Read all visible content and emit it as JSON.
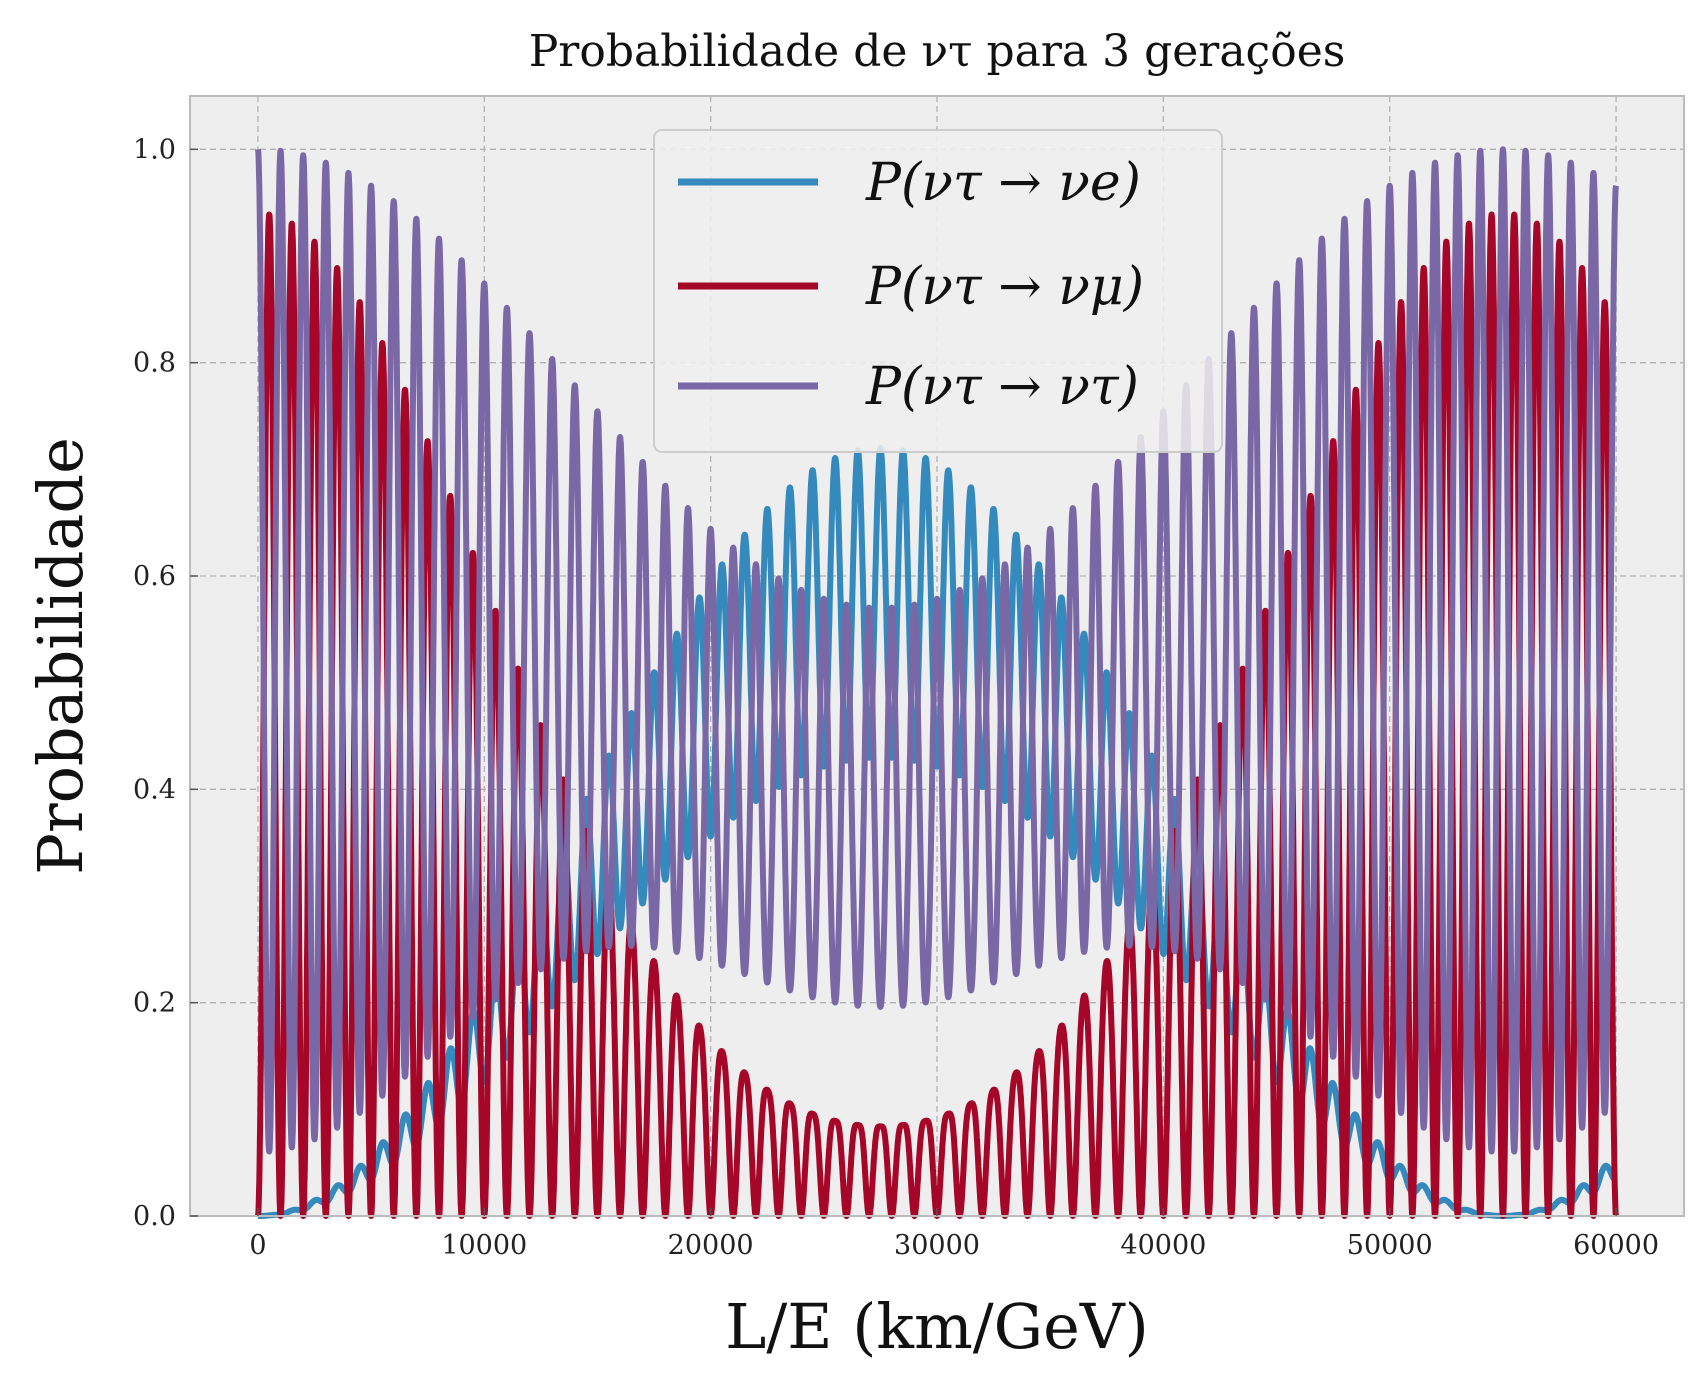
{
  "chart_data": {
    "type": "line",
    "title": "Probabilidade de ντ para 3 gerações",
    "xlabel": "L/E (km/GeV)",
    "ylabel": "Probabilidade",
    "xlim": [
      -3000,
      63000
    ],
    "ylim": [
      0.0,
      1.05
    ],
    "xticks": [
      0,
      10000,
      20000,
      30000,
      40000,
      50000,
      60000
    ],
    "xtick_labels": [
      "0",
      "10000",
      "20000",
      "30000",
      "40000",
      "50000",
      "60000"
    ],
    "yticks": [
      0.0,
      0.2,
      0.4,
      0.6,
      0.8,
      1.0
    ],
    "ytick_labels": [
      "0.0",
      "0.2",
      "0.4",
      "0.6",
      "0.8",
      "1.0"
    ],
    "grid": true,
    "legend_position": "top-center",
    "x_range": [
      0,
      60000
    ],
    "fast_period": 1000,
    "slow_period": 55000,
    "series": [
      {
        "name": "P(ντ → νe)",
        "color": "#348ABD"
      },
      {
        "name": "P(ντ → νμ)",
        "color": "#A60628"
      },
      {
        "name": "P(ντ → ντ)",
        "color": "#7A68A6"
      }
    ]
  }
}
